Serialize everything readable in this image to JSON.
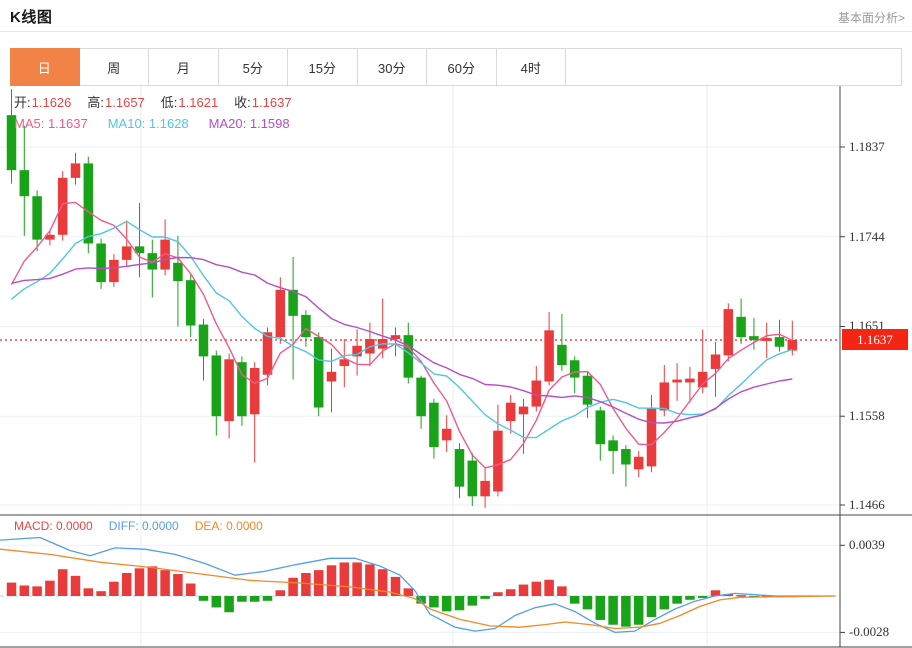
{
  "header": {
    "title": "K线图",
    "link": "基本面分析>"
  },
  "tabs": {
    "items": [
      "日",
      "周",
      "月",
      "5分",
      "15分",
      "30分",
      "60分",
      "4时"
    ],
    "names": [
      "tab-day",
      "tab-week",
      "tab-month",
      "tab-5min",
      "tab-15min",
      "tab-30min",
      "tab-60min",
      "tab-4hour"
    ],
    "active_index": 0
  },
  "ohlc_bar": {
    "items": [
      {
        "name": "open",
        "label": "开:",
        "value": "1.1626"
      },
      {
        "name": "high",
        "label": "高:",
        "value": "1.1657"
      },
      {
        "name": "low",
        "label": "低:",
        "value": "1.1621"
      },
      {
        "name": "close",
        "label": "收:",
        "value": "1.1637"
      }
    ]
  },
  "ma_bar": {
    "items": [
      {
        "name": "ma5",
        "label": "MA5:",
        "value": "1.1637",
        "color": "#ee5a8c"
      },
      {
        "name": "ma10",
        "label": "MA10:",
        "value": "1.1628",
        "color": "#52c5e0"
      },
      {
        "name": "ma20",
        "label": "MA20:",
        "value": "1.1598",
        "color": "#b44fc8"
      }
    ]
  },
  "macd_bar": {
    "items": [
      {
        "name": "macd",
        "label": "MACD:",
        "value": "0.0000",
        "color": "#e94444"
      },
      {
        "name": "diff",
        "label": "DIFF:",
        "value": "0.0000",
        "color": "#559fe3"
      },
      {
        "name": "dea",
        "label": "DEA:",
        "value": "0.0000",
        "color": "#f08929"
      }
    ]
  },
  "colors": {
    "up": "#e93b3b",
    "down": "#18a318",
    "ma5": "#ee5a8c",
    "ma10": "#52c5e0",
    "ma20": "#b44fc8",
    "diff": "#559fe3",
    "dea": "#f08929",
    "price_line": "#f5443e",
    "badge_bg": "#f42613",
    "grid": "#e9f1f9",
    "vgrid": "#e8ecf2",
    "frame": "#444444",
    "zero_dash": "#a6d9ec",
    "tab_active_bg": "#f08345"
  },
  "chart_data": {
    "type": "candlestick",
    "title": "K线图",
    "legend": [
      "MA5",
      "MA10",
      "MA20",
      "MACD",
      "DIFF",
      "DEA"
    ],
    "y_axis": {
      "ticks": [
        1.1837,
        1.1744,
        1.1651,
        1.1558,
        1.1466
      ],
      "current_price": 1.1637,
      "current_price_label": "1.1637"
    },
    "v_gridlines": [
      141,
      453,
      707
    ],
    "candles": [
      [
        1.187,
        1.1897,
        1.1799,
        1.1813
      ],
      [
        1.1813,
        1.1859,
        1.1745,
        1.1786
      ],
      [
        1.1786,
        1.1792,
        1.1729,
        1.1741
      ],
      [
        1.1741,
        1.175,
        1.1735,
        1.1746
      ],
      [
        1.1746,
        1.1812,
        1.174,
        1.1805
      ],
      [
        1.1805,
        1.1831,
        1.1798,
        1.182
      ],
      [
        1.182,
        1.1827,
        1.1727,
        1.1737
      ],
      [
        1.1737,
        1.1742,
        1.169,
        1.1697
      ],
      [
        1.1697,
        1.1726,
        1.1692,
        1.172
      ],
      [
        1.172,
        1.1761,
        1.1714,
        1.1734
      ],
      [
        1.1734,
        1.1779,
        1.1702,
        1.1727
      ],
      [
        1.1727,
        1.1741,
        1.1681,
        1.171
      ],
      [
        1.171,
        1.1762,
        1.1704,
        1.1741
      ],
      [
        1.1717,
        1.1745,
        1.1651,
        1.1698
      ],
      [
        1.1699,
        1.1706,
        1.164,
        1.1652
      ],
      [
        1.1653,
        1.1659,
        1.1595,
        1.162
      ],
      [
        1.1621,
        1.1626,
        1.1538,
        1.1558
      ],
      [
        1.1553,
        1.1623,
        1.1535,
        1.1617
      ],
      [
        1.1614,
        1.162,
        1.1548,
        1.1558
      ],
      [
        1.156,
        1.1614,
        1.151,
        1.1608
      ],
      [
        1.1601,
        1.165,
        1.159,
        1.1645
      ],
      [
        1.164,
        1.1702,
        1.1633,
        1.1689
      ],
      [
        1.1689,
        1.1723,
        1.1596,
        1.1662
      ],
      [
        1.1663,
        1.1668,
        1.163,
        1.164
      ],
      [
        1.164,
        1.1645,
        1.1558,
        1.1567
      ],
      [
        1.1594,
        1.1628,
        1.1562,
        1.1604
      ],
      [
        1.161,
        1.1638,
        1.1588,
        1.1617
      ],
      [
        1.162,
        1.1648,
        1.16,
        1.1631
      ],
      [
        1.1623,
        1.1655,
        1.161,
        1.1638
      ],
      [
        1.1628,
        1.168,
        1.1618,
        1.1638
      ],
      [
        1.1638,
        1.165,
        1.162,
        1.1642
      ],
      [
        1.1642,
        1.1655,
        1.1592,
        1.1598
      ],
      [
        1.1598,
        1.16,
        1.1545,
        1.1558
      ],
      [
        1.1572,
        1.1576,
        1.1514,
        1.1526
      ],
      [
        1.1533,
        1.1559,
        1.1521,
        1.1545
      ],
      [
        1.1524,
        1.153,
        1.1473,
        1.1485
      ],
      [
        1.1512,
        1.152,
        1.1465,
        1.1475
      ],
      [
        1.1475,
        1.1505,
        1.1463,
        1.1491
      ],
      [
        1.148,
        1.157,
        1.1475,
        1.1543
      ],
      [
        1.1553,
        1.158,
        1.154,
        1.1572
      ],
      [
        1.156,
        1.1576,
        1.1519,
        1.1568
      ],
      [
        1.1568,
        1.161,
        1.1563,
        1.1595
      ],
      [
        1.1594,
        1.1666,
        1.159,
        1.1647
      ],
      [
        1.1632,
        1.1664,
        1.1605,
        1.1611
      ],
      [
        1.1616,
        1.162,
        1.1582,
        1.1598
      ],
      [
        1.16,
        1.1604,
        1.1556,
        1.157
      ],
      [
        1.1564,
        1.1568,
        1.1512,
        1.1529
      ],
      [
        1.1533,
        1.1538,
        1.1498,
        1.1522
      ],
      [
        1.1524,
        1.1528,
        1.1485,
        1.1508
      ],
      [
        1.1503,
        1.1522,
        1.1495,
        1.1516
      ],
      [
        1.1506,
        1.158,
        1.15,
        1.1567
      ],
      [
        1.1564,
        1.1611,
        1.1558,
        1.1593
      ],
      [
        1.1593,
        1.1613,
        1.1574,
        1.1596
      ],
      [
        1.1593,
        1.1609,
        1.1572,
        1.1597
      ],
      [
        1.1588,
        1.1648,
        1.1582,
        1.1604
      ],
      [
        1.1607,
        1.1635,
        1.1578,
        1.1622
      ],
      [
        1.1621,
        1.1675,
        1.1615,
        1.1669
      ],
      [
        1.1661,
        1.168,
        1.1633,
        1.164
      ],
      [
        1.1641,
        1.166,
        1.1627,
        1.1637
      ],
      [
        1.1636,
        1.1655,
        1.1618,
        1.1639
      ],
      [
        1.164,
        1.1658,
        1.1625,
        1.163
      ],
      [
        1.1626,
        1.1657,
        1.1621,
        1.1637
      ]
    ],
    "ma_periods": [
      5,
      10,
      20
    ],
    "seed_history": [
      1.173,
      1.1727,
      1.1724,
      1.1721,
      1.1718,
      1.1715,
      1.1712,
      1.1709,
      1.1706,
      1.1703,
      1.1688,
      1.1678,
      1.1668,
      1.166,
      1.1655,
      1.166,
      1.1664,
      1.1668,
      1.1662,
      1.1665
    ],
    "macd": {
      "ticks": [
        0.0039,
        -0.0028
      ],
      "hist": [
        0.00103,
        0.00081,
        0.00074,
        0.00118,
        0.00206,
        0.00155,
        0.00059,
        0.00037,
        0.0011,
        0.00177,
        0.00213,
        0.00228,
        0.00199,
        0.00169,
        0.00096,
        -0.00037,
        -0.00088,
        -0.00125,
        -0.00044,
        -0.00044,
        -0.00037,
        0.00044,
        0.0014,
        0.00177,
        0.00199,
        0.00236,
        0.00258,
        0.00258,
        0.00243,
        0.00206,
        0.00147,
        0.00059,
        -0.00059,
        -0.00088,
        -0.00118,
        -0.0011,
        -0.00074,
        -0.00022,
        0.00029,
        0.00052,
        0.00088,
        0.0011,
        0.00125,
        0.00074,
        -0.00059,
        -0.00103,
        -0.00184,
        -0.00221,
        -0.00236,
        -0.00221,
        -0.00162,
        -0.00103,
        -0.00059,
        -0.00029,
        -0.00015,
        0.00044,
        0.00015,
        7e-05,
        -7e-05,
        7e-05,
        -7e-05,
        2e-05
      ],
      "diff": [
        [
          0,
          0.0043
        ],
        [
          40,
          0.0045
        ],
        [
          70,
          0.0035
        ],
        [
          90,
          0.0031
        ],
        [
          115,
          0.0037
        ],
        [
          145,
          0.0036
        ],
        [
          175,
          0.0032
        ],
        [
          205,
          0.0025
        ],
        [
          235,
          0.0016
        ],
        [
          265,
          0.0019
        ],
        [
          295,
          0.0024
        ],
        [
          330,
          0.0029
        ],
        [
          355,
          0.0029
        ],
        [
          380,
          0.0023
        ],
        [
          400,
          0.0016
        ],
        [
          415,
          0.0004
        ],
        [
          430,
          -0.0014
        ],
        [
          455,
          -0.0024
        ],
        [
          475,
          -0.0027
        ],
        [
          495,
          -0.0025
        ],
        [
          515,
          -0.0015
        ],
        [
          535,
          -0.0009
        ],
        [
          555,
          -0.0006
        ],
        [
          575,
          -0.0012
        ],
        [
          595,
          -0.0021
        ],
        [
          615,
          -0.0028
        ],
        [
          635,
          -0.0027
        ],
        [
          655,
          -0.0018
        ],
        [
          675,
          -0.001
        ],
        [
          695,
          -0.0004
        ],
        [
          715,
          0.0
        ],
        [
          735,
          0.0002
        ],
        [
          755,
          0.0001
        ],
        [
          775,
          0.0
        ],
        [
          835,
          0.0
        ]
      ],
      "dea": [
        [
          0,
          0.0036
        ],
        [
          50,
          0.0032
        ],
        [
          100,
          0.0026
        ],
        [
          150,
          0.0022
        ],
        [
          200,
          0.0017
        ],
        [
          250,
          0.0012
        ],
        [
          300,
          0.001
        ],
        [
          350,
          0.0007
        ],
        [
          390,
          0.0003
        ],
        [
          415,
          -0.0002
        ],
        [
          430,
          -0.001
        ],
        [
          460,
          -0.0018
        ],
        [
          490,
          -0.0023
        ],
        [
          520,
          -0.0024
        ],
        [
          545,
          -0.0022
        ],
        [
          565,
          -0.002
        ],
        [
          590,
          -0.0022
        ],
        [
          615,
          -0.0025
        ],
        [
          640,
          -0.0024
        ],
        [
          660,
          -0.0021
        ],
        [
          680,
          -0.0015
        ],
        [
          700,
          -0.0008
        ],
        [
          720,
          -0.0003
        ],
        [
          740,
          -0.0001
        ],
        [
          835,
          0.0
        ]
      ]
    }
  }
}
